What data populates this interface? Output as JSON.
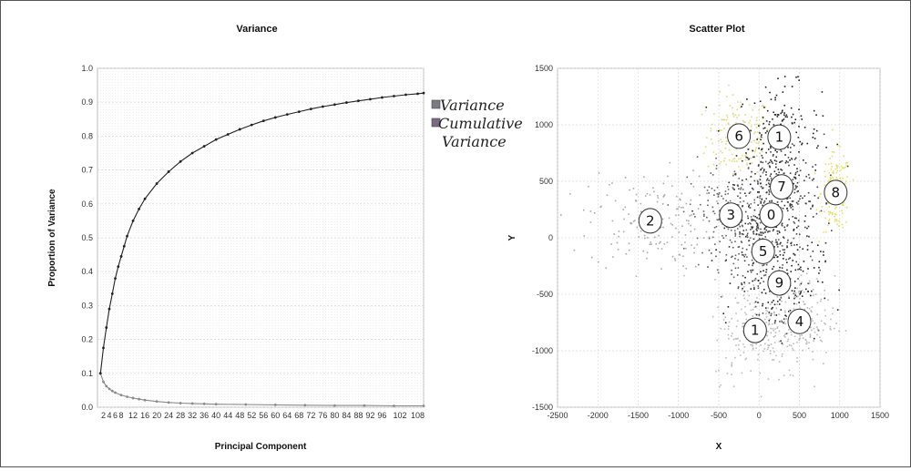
{
  "chart_data": [
    {
      "type": "line",
      "title": "Variance",
      "xlabel": "Principal Component",
      "ylabel": "Proportion of Variance",
      "xlim": [
        0,
        110
      ],
      "ylim": [
        0,
        1.0
      ],
      "xticks": [
        2,
        4,
        6,
        8,
        12,
        16,
        20,
        24,
        28,
        32,
        36,
        40,
        44,
        48,
        52,
        56,
        60,
        64,
        68,
        72,
        76,
        80,
        84,
        88,
        92,
        96,
        102,
        108
      ],
      "xtick_labels": [
        "2",
        "4",
        "6",
        "8",
        "12",
        "16",
        "20",
        "24",
        "28",
        "32",
        "36",
        "40",
        "44",
        "48",
        "52",
        "56",
        "60",
        "64",
        "68",
        "72",
        "76",
        "80",
        "84",
        "88",
        "92",
        "96",
        "102",
        "108"
      ],
      "yticks": [
        0.0,
        0.1,
        0.2,
        0.3,
        0.4,
        0.5,
        0.6,
        0.7,
        0.8,
        0.9,
        1.0
      ],
      "ytick_labels": [
        "0.0",
        "0.1",
        "0.2",
        "0.3",
        "0.4",
        "0.5",
        "0.6",
        "0.7",
        "0.8",
        "0.9",
        "1.0"
      ],
      "grid": true,
      "legend_position": "right",
      "series": [
        {
          "name": "Variance",
          "color": "#8a8a8a",
          "x": [
            1,
            2,
            3,
            4,
            5,
            6,
            8,
            10,
            12,
            14,
            16,
            20,
            24,
            28,
            32,
            36,
            40,
            50,
            60,
            70,
            80,
            90,
            100,
            110
          ],
          "y": [
            0.1,
            0.075,
            0.062,
            0.054,
            0.048,
            0.043,
            0.036,
            0.031,
            0.027,
            0.024,
            0.021,
            0.017,
            0.014,
            0.012,
            0.011,
            0.01,
            0.009,
            0.008,
            0.007,
            0.006,
            0.005,
            0.005,
            0.004,
            0.004
          ]
        },
        {
          "name": "Cumulative Variance",
          "color": "#222222",
          "x": [
            1,
            2,
            3,
            4,
            5,
            6,
            7,
            8,
            9,
            10,
            12,
            14,
            16,
            20,
            24,
            28,
            32,
            36,
            40,
            44,
            48,
            52,
            56,
            60,
            64,
            68,
            72,
            76,
            80,
            84,
            88,
            92,
            96,
            100,
            104,
            108,
            110
          ],
          "y": [
            0.1,
            0.175,
            0.235,
            0.29,
            0.335,
            0.38,
            0.415,
            0.445,
            0.475,
            0.505,
            0.55,
            0.585,
            0.615,
            0.66,
            0.695,
            0.725,
            0.75,
            0.77,
            0.79,
            0.805,
            0.82,
            0.833,
            0.845,
            0.855,
            0.864,
            0.872,
            0.88,
            0.887,
            0.893,
            0.899,
            0.904,
            0.909,
            0.914,
            0.918,
            0.922,
            0.925,
            0.927
          ]
        }
      ]
    },
    {
      "type": "scatter",
      "title": "Scatter Plot",
      "xlabel": "X",
      "ylabel": "Y",
      "xlim": [
        -2500,
        1500
      ],
      "ylim": [
        -1500,
        1500
      ],
      "xticks": [
        -2500,
        -2000,
        -1500,
        -1000,
        -500,
        0,
        500,
        1000,
        1500
      ],
      "xtick_labels": [
        "-2500",
        "-2000",
        "-1500",
        "-1000",
        "-500",
        "0",
        "500",
        "1000",
        "1500"
      ],
      "yticks": [
        -1500,
        -1000,
        -500,
        0,
        500,
        1000,
        1500
      ],
      "ytick_labels": [
        "-1500",
        "-1000",
        "-500",
        "0",
        "500",
        "1000",
        "1500"
      ],
      "grid": true,
      "clusters": [
        {
          "label": "6",
          "x": -250,
          "y": 900,
          "color": "#e0dc7a"
        },
        {
          "label": "1",
          "x": 250,
          "y": 890,
          "color": "#222222"
        },
        {
          "label": "8",
          "x": 950,
          "y": 400,
          "color": "#e6e066"
        },
        {
          "label": "7",
          "x": 280,
          "y": 450,
          "color": "#444444"
        },
        {
          "label": "2",
          "x": -1350,
          "y": 150,
          "color": "#aaaaaa"
        },
        {
          "label": "3",
          "x": -350,
          "y": 200,
          "color": "#666666"
        },
        {
          "label": "0",
          "x": 150,
          "y": 200,
          "color": "#333333"
        },
        {
          "label": "5",
          "x": 50,
          "y": -120,
          "color": "#555555"
        },
        {
          "label": "9",
          "x": 250,
          "y": -400,
          "color": "#222222"
        },
        {
          "label": "4",
          "x": 500,
          "y": -740,
          "color": "#bbbbbb"
        },
        {
          "label": "1",
          "x": -50,
          "y": -820,
          "color": "#bbbbbb"
        }
      ]
    }
  ]
}
